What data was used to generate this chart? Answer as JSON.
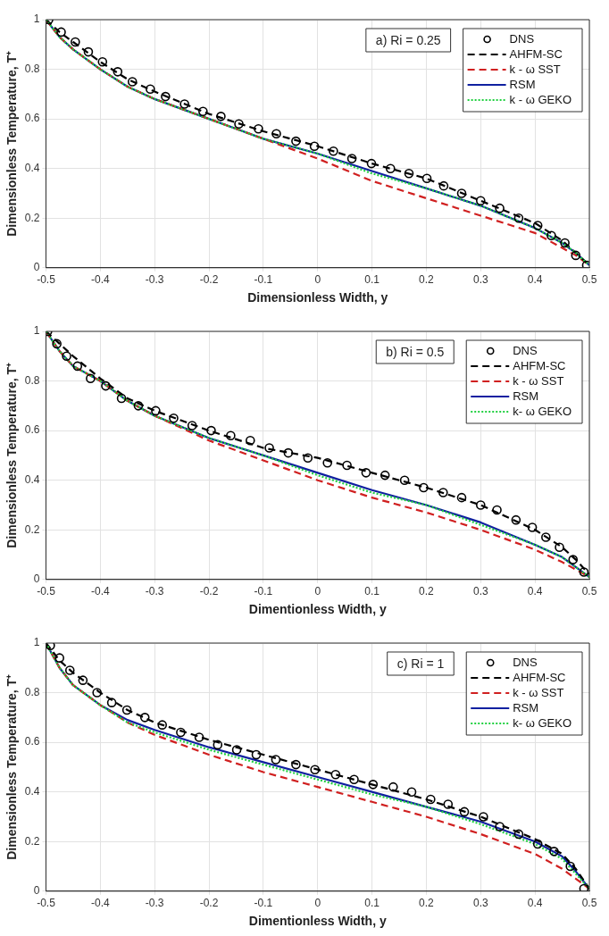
{
  "chart_data": [
    {
      "type": "line",
      "xlabel": "Dimensionless Width, y",
      "ylabel": "Dimensionless Temperature, T⁺",
      "annotations": [
        "a) Ri = 0.25"
      ],
      "xlim": [
        -0.5,
        0.5
      ],
      "xticks": [
        -0.5,
        -0.4,
        -0.3,
        -0.2,
        -0.1,
        0,
        0.1,
        0.2,
        0.3,
        0.4,
        0.5
      ],
      "ylim": [
        0,
        1
      ],
      "yticks": [
        0,
        0.2,
        0.4,
        0.6,
        0.8,
        1
      ],
      "grid": true,
      "legend": "top right",
      "series": [
        {
          "name": "DNS",
          "type": "scatter",
          "marker": "circle",
          "color": "#000000",
          "x": [
            -0.495,
            -0.472,
            -0.446,
            -0.422,
            -0.396,
            -0.368,
            -0.341,
            -0.308,
            -0.28,
            -0.245,
            -0.211,
            -0.178,
            -0.145,
            -0.109,
            -0.076,
            -0.04,
            -0.006,
            0.029,
            0.063,
            0.099,
            0.134,
            0.168,
            0.201,
            0.232,
            0.265,
            0.3,
            0.335,
            0.37,
            0.405,
            0.43,
            0.455,
            0.475,
            0.495
          ],
          "values": [
            1.0,
            0.95,
            0.91,
            0.87,
            0.83,
            0.79,
            0.75,
            0.72,
            0.69,
            0.66,
            0.63,
            0.61,
            0.58,
            0.56,
            0.54,
            0.51,
            0.49,
            0.47,
            0.44,
            0.42,
            0.4,
            0.38,
            0.36,
            0.33,
            0.3,
            0.27,
            0.24,
            0.2,
            0.17,
            0.13,
            0.1,
            0.05,
            0.01
          ]
        },
        {
          "name": "AHFM-SC",
          "type": "line",
          "line_style": "dashed",
          "color": "#000000",
          "x": [
            -0.5,
            -0.475,
            -0.45,
            -0.4,
            -0.35,
            -0.3,
            -0.2,
            -0.1,
            0,
            0.1,
            0.2,
            0.3,
            0.4,
            0.45,
            0.475,
            0.5
          ],
          "values": [
            1.0,
            0.95,
            0.91,
            0.83,
            0.76,
            0.71,
            0.62,
            0.55,
            0.49,
            0.42,
            0.36,
            0.27,
            0.18,
            0.11,
            0.06,
            0.01
          ]
        },
        {
          "name": "k - ω SST",
          "type": "line",
          "line_style": "dashed",
          "color": "#d02020",
          "x": [
            -0.5,
            -0.475,
            -0.45,
            -0.4,
            -0.35,
            -0.3,
            -0.2,
            -0.1,
            0,
            0.1,
            0.2,
            0.3,
            0.4,
            0.45,
            0.475,
            0.5
          ],
          "values": [
            1.0,
            0.93,
            0.88,
            0.8,
            0.73,
            0.68,
            0.6,
            0.52,
            0.44,
            0.35,
            0.28,
            0.21,
            0.14,
            0.08,
            0.05,
            0.01
          ]
        },
        {
          "name": "RSM",
          "type": "line",
          "line_style": "solid",
          "color": "#1020a0",
          "x": [
            -0.5,
            -0.475,
            -0.45,
            -0.4,
            -0.35,
            -0.3,
            -0.2,
            -0.1,
            0,
            0.1,
            0.2,
            0.3,
            0.4,
            0.45,
            0.475,
            0.5
          ],
          "values": [
            1.0,
            0.93,
            0.88,
            0.8,
            0.73,
            0.68,
            0.6,
            0.52,
            0.46,
            0.39,
            0.32,
            0.25,
            0.16,
            0.1,
            0.06,
            0.01
          ]
        },
        {
          "name": "k - ω GEKO",
          "type": "line",
          "line_style": "dotted",
          "color": "#20d040",
          "x": [
            -0.5,
            -0.475,
            -0.45,
            -0.4,
            -0.35,
            -0.3,
            -0.2,
            -0.1,
            0,
            0.1,
            0.2,
            0.3,
            0.4,
            0.45,
            0.475,
            0.5
          ],
          "values": [
            1.0,
            0.93,
            0.88,
            0.8,
            0.73,
            0.68,
            0.6,
            0.52,
            0.46,
            0.38,
            0.32,
            0.25,
            0.16,
            0.1,
            0.06,
            0.01
          ]
        }
      ]
    },
    {
      "type": "line",
      "xlabel": "Dimentionless Width, y",
      "ylabel": "Dimensionless Temperature, T⁺",
      "annotations": [
        "b) Ri = 0.5"
      ],
      "xlim": [
        -0.5,
        0.5
      ],
      "xticks": [
        -0.5,
        -0.4,
        -0.3,
        -0.2,
        -0.1,
        0,
        0.1,
        0.2,
        0.3,
        0.4,
        0.5
      ],
      "ylim": [
        0,
        1
      ],
      "yticks": [
        0,
        0.2,
        0.4,
        0.6,
        0.8,
        1
      ],
      "grid": true,
      "legend": "top right",
      "series": [
        {
          "name": "DNS",
          "type": "scatter",
          "marker": "circle",
          "color": "#000000",
          "x": [
            -0.497,
            -0.48,
            -0.462,
            -0.442,
            -0.418,
            -0.39,
            -0.361,
            -0.33,
            -0.298,
            -0.265,
            -0.231,
            -0.196,
            -0.16,
            -0.124,
            -0.089,
            -0.054,
            -0.018,
            0.018,
            0.054,
            0.089,
            0.124,
            0.16,
            0.195,
            0.231,
            0.265,
            0.3,
            0.33,
            0.365,
            0.395,
            0.42,
            0.445,
            0.47,
            0.49
          ],
          "values": [
            1.0,
            0.95,
            0.9,
            0.86,
            0.81,
            0.78,
            0.73,
            0.7,
            0.68,
            0.65,
            0.62,
            0.6,
            0.58,
            0.56,
            0.53,
            0.51,
            0.49,
            0.47,
            0.46,
            0.43,
            0.42,
            0.4,
            0.37,
            0.35,
            0.33,
            0.3,
            0.28,
            0.24,
            0.21,
            0.17,
            0.13,
            0.08,
            0.03
          ]
        },
        {
          "name": "AHFM-SC",
          "type": "line",
          "line_style": "dashed",
          "color": "#000000",
          "x": [
            -0.5,
            -0.475,
            -0.45,
            -0.4,
            -0.35,
            -0.3,
            -0.2,
            -0.1,
            0,
            0.1,
            0.2,
            0.3,
            0.4,
            0.45,
            0.475,
            0.5
          ],
          "values": [
            1.0,
            0.95,
            0.9,
            0.81,
            0.73,
            0.68,
            0.6,
            0.53,
            0.49,
            0.43,
            0.37,
            0.3,
            0.2,
            0.13,
            0.08,
            0.02
          ]
        },
        {
          "name": "k - ω SST",
          "type": "line",
          "line_style": "dashed",
          "color": "#d02020",
          "x": [
            -0.5,
            -0.475,
            -0.45,
            -0.4,
            -0.35,
            -0.3,
            -0.2,
            -0.1,
            0,
            0.1,
            0.2,
            0.3,
            0.4,
            0.45,
            0.475,
            0.5
          ],
          "values": [
            1.0,
            0.92,
            0.86,
            0.8,
            0.72,
            0.66,
            0.56,
            0.48,
            0.4,
            0.33,
            0.27,
            0.2,
            0.12,
            0.07,
            0.04,
            0.01
          ]
        },
        {
          "name": "RSM",
          "type": "line",
          "line_style": "solid",
          "color": "#1020a0",
          "x": [
            -0.5,
            -0.475,
            -0.45,
            -0.4,
            -0.35,
            -0.3,
            -0.2,
            -0.1,
            0,
            0.1,
            0.2,
            0.3,
            0.4,
            0.45,
            0.475,
            0.5
          ],
          "values": [
            1.0,
            0.92,
            0.86,
            0.8,
            0.72,
            0.66,
            0.57,
            0.5,
            0.43,
            0.36,
            0.3,
            0.23,
            0.14,
            0.09,
            0.05,
            0.01
          ]
        },
        {
          "name": "k- ω GEKO",
          "type": "line",
          "line_style": "dotted",
          "color": "#20d040",
          "x": [
            -0.5,
            -0.475,
            -0.45,
            -0.4,
            -0.35,
            -0.3,
            -0.2,
            -0.1,
            0,
            0.1,
            0.2,
            0.3,
            0.4,
            0.45,
            0.475,
            0.5
          ],
          "values": [
            1.0,
            0.92,
            0.86,
            0.8,
            0.72,
            0.66,
            0.57,
            0.5,
            0.42,
            0.35,
            0.3,
            0.22,
            0.14,
            0.09,
            0.05,
            0.01
          ]
        }
      ]
    },
    {
      "type": "line",
      "xlabel": "Dimentionless Width, y",
      "ylabel": "Dimensionless Temperature, T⁺",
      "annotations": [
        "c) Ri = 1"
      ],
      "xlim": [
        -0.5,
        0.5
      ],
      "xticks": [
        -0.5,
        -0.4,
        -0.3,
        -0.2,
        -0.1,
        0,
        0.1,
        0.2,
        0.3,
        0.4,
        0.5
      ],
      "ylim": [
        0,
        1
      ],
      "yticks": [
        0,
        0.2,
        0.4,
        0.6,
        0.8,
        1
      ],
      "grid": true,
      "legend": "top right",
      "series": [
        {
          "name": "DNS",
          "type": "scatter",
          "marker": "circle",
          "color": "#000000",
          "x": [
            -0.492,
            -0.475,
            -0.456,
            -0.432,
            -0.406,
            -0.379,
            -0.351,
            -0.318,
            -0.286,
            -0.252,
            -0.218,
            -0.184,
            -0.149,
            -0.113,
            -0.077,
            -0.04,
            -0.005,
            0.033,
            0.067,
            0.102,
            0.139,
            0.173,
            0.208,
            0.24,
            0.27,
            0.305,
            0.335,
            0.37,
            0.405,
            0.435,
            0.465,
            0.49
          ],
          "values": [
            0.99,
            0.94,
            0.89,
            0.85,
            0.8,
            0.76,
            0.73,
            0.7,
            0.67,
            0.64,
            0.62,
            0.59,
            0.57,
            0.55,
            0.53,
            0.51,
            0.49,
            0.47,
            0.45,
            0.43,
            0.42,
            0.4,
            0.37,
            0.35,
            0.32,
            0.3,
            0.26,
            0.23,
            0.19,
            0.16,
            0.1,
            0.01
          ]
        },
        {
          "name": "AHFM-SC",
          "type": "line",
          "line_style": "dashed",
          "color": "#000000",
          "x": [
            -0.5,
            -0.475,
            -0.45,
            -0.4,
            -0.35,
            -0.3,
            -0.2,
            -0.1,
            0,
            0.1,
            0.2,
            0.3,
            0.4,
            0.45,
            0.475,
            0.5
          ],
          "values": [
            1.0,
            0.93,
            0.88,
            0.8,
            0.73,
            0.68,
            0.61,
            0.55,
            0.49,
            0.43,
            0.37,
            0.3,
            0.21,
            0.15,
            0.09,
            0.01
          ]
        },
        {
          "name": "k - ω SST",
          "type": "line",
          "line_style": "dashed",
          "color": "#d02020",
          "x": [
            -0.5,
            -0.475,
            -0.45,
            -0.4,
            -0.35,
            -0.3,
            -0.2,
            -0.1,
            0,
            0.1,
            0.2,
            0.3,
            0.4,
            0.45,
            0.475,
            0.5
          ],
          "values": [
            1.0,
            0.9,
            0.83,
            0.75,
            0.68,
            0.63,
            0.55,
            0.48,
            0.42,
            0.36,
            0.3,
            0.23,
            0.15,
            0.09,
            0.05,
            0.01
          ]
        },
        {
          "name": "RSM",
          "type": "line",
          "line_style": "solid",
          "color": "#1020a0",
          "x": [
            -0.5,
            -0.475,
            -0.45,
            -0.4,
            -0.35,
            -0.3,
            -0.2,
            -0.1,
            0,
            0.1,
            0.2,
            0.3,
            0.4,
            0.45,
            0.475,
            0.5
          ],
          "values": [
            1.0,
            0.9,
            0.83,
            0.75,
            0.69,
            0.65,
            0.58,
            0.52,
            0.46,
            0.4,
            0.34,
            0.28,
            0.2,
            0.14,
            0.08,
            0.01
          ]
        },
        {
          "name": "k- ω GEKO",
          "type": "line",
          "line_style": "dotted",
          "color": "#20d040",
          "x": [
            -0.5,
            -0.475,
            -0.45,
            -0.4,
            -0.35,
            -0.3,
            -0.2,
            -0.1,
            0,
            0.1,
            0.2,
            0.3,
            0.4,
            0.45,
            0.475,
            0.5
          ],
          "values": [
            1.0,
            0.9,
            0.83,
            0.75,
            0.68,
            0.64,
            0.57,
            0.51,
            0.45,
            0.39,
            0.34,
            0.27,
            0.19,
            0.13,
            0.07,
            0.01
          ]
        }
      ]
    }
  ]
}
